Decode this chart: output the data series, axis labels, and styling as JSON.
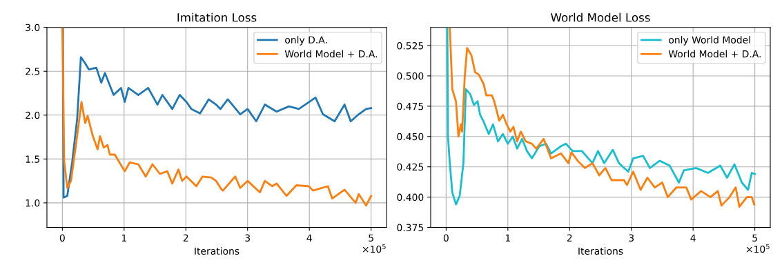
{
  "chart_data": [
    {
      "type": "line",
      "title": "Imitation Loss",
      "xlabel": "Iterations",
      "annotations": [
        "×10$^{5}$"
      ],
      "xlim": [
        -0.25,
        5.25
      ],
      "xticks": [
        0,
        1,
        2,
        3,
        4,
        5
      ],
      "ylim": [
        0.72,
        3.0
      ],
      "yticks": [
        {
          "value": 1.0,
          "label": "1.0"
        },
        1.5,
        {
          "value": 2.0,
          "label": "2.0"
        },
        2.5,
        {
          "value": 3.0,
          "label": "3.0"
        }
      ],
      "grid": true,
      "legend": "top right",
      "series": [
        {
          "name": "only D.A.",
          "color": "#1f77b4",
          "x": [
            0.01,
            0.02,
            0.08,
            0.16,
            0.24,
            0.3,
            0.36,
            0.43,
            0.55,
            0.63,
            0.69,
            0.83,
            0.95,
            1.01,
            1.07,
            1.23,
            1.39,
            1.54,
            1.62,
            1.78,
            1.9,
            2.01,
            2.09,
            2.23,
            2.37,
            2.49,
            2.56,
            2.68,
            2.88,
            3.0,
            3.14,
            3.28,
            3.47,
            3.67,
            3.83,
            4.1,
            4.22,
            4.41,
            4.57,
            4.67,
            4.8,
            4.92,
            5.0
          ],
          "values": [
            3.0,
            1.06,
            1.08,
            1.47,
            1.96,
            2.66,
            2.6,
            2.52,
            2.54,
            2.37,
            2.48,
            2.23,
            2.31,
            2.15,
            2.31,
            2.23,
            2.31,
            2.12,
            2.23,
            2.07,
            2.23,
            2.15,
            2.07,
            2.02,
            2.18,
            2.12,
            2.07,
            2.18,
            2.01,
            2.07,
            1.93,
            2.12,
            2.04,
            2.1,
            2.07,
            2.2,
            2.01,
            1.93,
            2.12,
            1.93,
            2.01,
            2.07,
            2.08
          ]
        },
        {
          "name": "World Model + D.A.",
          "color": "#ff7f0e",
          "x": [
            0.0,
            0.03,
            0.08,
            0.14,
            0.22,
            0.31,
            0.37,
            0.41,
            0.49,
            0.57,
            0.61,
            0.67,
            0.73,
            0.77,
            0.85,
            1.01,
            1.09,
            1.23,
            1.35,
            1.46,
            1.58,
            1.7,
            1.78,
            1.88,
            1.94,
            2.01,
            2.17,
            2.27,
            2.41,
            2.49,
            2.58,
            2.6,
            2.8,
            2.88,
            3.0,
            3.2,
            3.28,
            3.4,
            3.47,
            3.63,
            3.79,
            3.99,
            4.06,
            4.3,
            4.37,
            4.57,
            4.75,
            4.8,
            4.92,
            5.0
          ],
          "values": [
            3.0,
            1.47,
            1.17,
            1.25,
            1.66,
            2.15,
            1.91,
            1.99,
            1.77,
            1.61,
            1.76,
            1.63,
            1.66,
            1.55,
            1.55,
            1.36,
            1.46,
            1.44,
            1.3,
            1.44,
            1.33,
            1.36,
            1.22,
            1.38,
            1.25,
            1.3,
            1.19,
            1.3,
            1.29,
            1.25,
            1.15,
            1.14,
            1.3,
            1.17,
            1.25,
            1.12,
            1.25,
            1.19,
            1.22,
            1.08,
            1.2,
            1.19,
            1.14,
            1.19,
            1.05,
            1.15,
            1.0,
            1.1,
            0.97,
            1.08
          ]
        }
      ]
    },
    {
      "type": "line",
      "title": "World Model Loss",
      "xlabel": "Iterations",
      "annotations": [
        "×10$^{5}$"
      ],
      "xlim": [
        -0.25,
        5.25
      ],
      "xticks": [
        0,
        1,
        2,
        3,
        4,
        5
      ],
      "ylim": [
        0.375,
        0.54
      ],
      "yticks": [
        0.375,
        {
          "value": 0.4,
          "label": "0.400"
        },
        0.425,
        {
          "value": 0.45,
          "label": "0.450"
        },
        0.475,
        {
          "value": 0.5,
          "label": "0.500"
        },
        0.525
      ],
      "grid": true,
      "legend": "top right",
      "series": [
        {
          "name": "only World Model",
          "color": "#17becf",
          "x": [
            0.02,
            0.03,
            0.06,
            0.1,
            0.16,
            0.22,
            0.28,
            0.32,
            0.39,
            0.45,
            0.51,
            0.55,
            0.61,
            0.69,
            0.76,
            0.84,
            0.92,
            1.0,
            1.08,
            1.15,
            1.23,
            1.31,
            1.39,
            1.51,
            1.62,
            1.7,
            1.86,
            1.94,
            2.05,
            2.2,
            2.37,
            2.46,
            2.56,
            2.7,
            2.8,
            2.95,
            3.03,
            3.19,
            3.3,
            3.46,
            3.62,
            3.77,
            3.85,
            4.05,
            4.24,
            4.44,
            4.55,
            4.67,
            4.79,
            4.89,
            4.95,
            5.0
          ],
          "values": [
            0.54,
            0.45,
            0.428,
            0.404,
            0.394,
            0.401,
            0.428,
            0.489,
            0.485,
            0.476,
            0.479,
            0.468,
            0.462,
            0.452,
            0.46,
            0.446,
            0.452,
            0.444,
            0.45,
            0.44,
            0.448,
            0.438,
            0.432,
            0.442,
            0.444,
            0.436,
            0.442,
            0.444,
            0.438,
            0.438,
            0.428,
            0.438,
            0.428,
            0.439,
            0.428,
            0.421,
            0.432,
            0.434,
            0.424,
            0.43,
            0.426,
            0.412,
            0.422,
            0.424,
            0.42,
            0.426,
            0.416,
            0.427,
            0.412,
            0.406,
            0.42,
            0.419
          ]
        },
        {
          "name": "World Model + D.A.",
          "color": "#ff7f0e",
          "x": [
            0.06,
            0.1,
            0.16,
            0.2,
            0.24,
            0.26,
            0.3,
            0.34,
            0.41,
            0.47,
            0.53,
            0.61,
            0.65,
            0.74,
            0.78,
            0.86,
            0.92,
            0.98,
            1.04,
            1.09,
            1.15,
            1.21,
            1.29,
            1.39,
            1.46,
            1.58,
            1.7,
            1.86,
            1.98,
            2.03,
            2.13,
            2.25,
            2.37,
            2.48,
            2.58,
            2.68,
            2.88,
            2.93,
            3.03,
            3.15,
            3.26,
            3.38,
            3.5,
            3.59,
            3.73,
            3.89,
            3.97,
            4.13,
            4.28,
            4.4,
            4.46,
            4.59,
            4.69,
            4.75,
            4.87,
            4.95,
            4.99
          ],
          "values": [
            0.54,
            0.489,
            0.479,
            0.45,
            0.46,
            0.454,
            0.498,
            0.523,
            0.517,
            0.503,
            0.501,
            0.493,
            0.484,
            0.484,
            0.479,
            0.463,
            0.468,
            0.46,
            0.454,
            0.458,
            0.446,
            0.454,
            0.446,
            0.444,
            0.44,
            0.448,
            0.432,
            0.436,
            0.428,
            0.437,
            0.43,
            0.424,
            0.428,
            0.418,
            0.424,
            0.414,
            0.414,
            0.41,
            0.421,
            0.406,
            0.416,
            0.408,
            0.412,
            0.4,
            0.408,
            0.408,
            0.398,
            0.405,
            0.4,
            0.405,
            0.393,
            0.4,
            0.408,
            0.392,
            0.4,
            0.4,
            0.394
          ]
        }
      ]
    }
  ]
}
